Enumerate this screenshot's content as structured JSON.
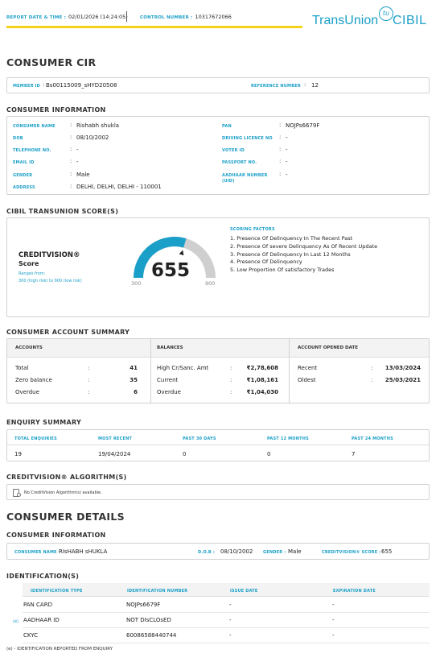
{
  "header": {
    "report_date_label": "REPORT DATE & TIME :",
    "report_date_value": "02/01/2026 (14:24:05)",
    "control_label": "CONTROL NUMBER :",
    "control_value": "10317672066",
    "logo_text_1": "TransUnion",
    "logo_text_2": "CIBIL",
    "logo_mark": "tu"
  },
  "title": "CONSUMER CIR",
  "member": {
    "member_id_label": "MEMBER ID",
    "member_id_value": "Bs00115009_sHYD20508",
    "reference_label": "REFERENCE NUMBER",
    "reference_value": "12"
  },
  "consumer_info": {
    "heading": "CONSUMER INFORMATION",
    "left": [
      {
        "label": "CONSUMER NAME",
        "value": "Rishabh shukla"
      },
      {
        "label": "DOB",
        "value": "08/10/2002"
      },
      {
        "label": "TELEPHONE NO.",
        "value": "-"
      },
      {
        "label": "EMAIL ID",
        "value": "-"
      },
      {
        "label": "GENDER",
        "value": "Male"
      },
      {
        "label": "ADDRESS",
        "value": "DELHI, DELHI, DELHI - 110001"
      }
    ],
    "right": [
      {
        "label": "PAN",
        "value": "NOJPs6679F"
      },
      {
        "label": "DRIVING LICENCE NO",
        "value": "-"
      },
      {
        "label": "VOTER ID",
        "value": "-"
      },
      {
        "label": "PASSPORT NO.",
        "value": "-"
      },
      {
        "label": "AADHAAR NUMBER",
        "label2": "(UID)",
        "value": "-"
      }
    ]
  },
  "score": {
    "heading": "CIBIL TRANSUNION SCORE(S)",
    "brand": "CREDITVISION®",
    "brand_sub": "Score",
    "ranges_label": "Ranges from:",
    "ranges_value": "300 (high risk) to 900 (low risk)",
    "value": 655,
    "min": 300,
    "max": 900,
    "min_label": "300",
    "max_label": "900",
    "color_fill": "#1a9fc8",
    "color_rest": "#cfcfcf",
    "factors_heading": "SCORING FACTORS",
    "factors": [
      "1. Presence Of Delinquency In The Recent Past",
      "2. Presence Of severe Delinquency As Of Recent Update",
      "3. Presence Of Delinquency In Last 12 Months",
      "4. Presence Of Delinquency",
      "5. Low Proportion Of satisfactory Trades"
    ]
  },
  "account_summary": {
    "heading": "CONSUMER ACCOUNT SUMMARY",
    "accounts": {
      "title": "ACCOUNTS",
      "rows": [
        {
          "label": "Total",
          "value": "41"
        },
        {
          "label": "Zero balance",
          "value": "35"
        },
        {
          "label": "Overdue",
          "value": "6"
        }
      ]
    },
    "balances": {
      "title": "BALANCES",
      "rows": [
        {
          "label": "High Cr/Sanc. Amt",
          "value": "₹2,78,608"
        },
        {
          "label": "Current",
          "value": "₹1,08,161"
        },
        {
          "label": "Overdue",
          "value": "₹1,04,030"
        }
      ]
    },
    "opened": {
      "title": "ACCOUNT OPENED DATE",
      "rows": [
        {
          "label": "Recent",
          "value": "13/03/2024"
        },
        {
          "label": "Oldest",
          "value": "25/03/2021"
        }
      ]
    }
  },
  "enquiry": {
    "heading": "ENQUIRY SUMMARY",
    "columns": [
      "TOTAL ENQUIRIES",
      "MOST RECENT",
      "PAST 30 DAYS",
      "PAST 12 MONTHS",
      "PAST 24 MONTHS"
    ],
    "values": [
      "19",
      "19/04/2024",
      "0",
      "0",
      "7"
    ]
  },
  "algorithm": {
    "heading": "CREDITVISION® ALGORITHM(S)",
    "message": "No CreditVision Algorithm(s) available."
  },
  "details": {
    "heading": "CONSUMER DETAILS",
    "info_heading": "CONSUMER INFORMATION",
    "name_label": "CONSUMER NAME :",
    "name_value": "RIsHABH sHUKLA",
    "dob_label": "D.O.B :",
    "dob_value": "08/10/2002",
    "gender_label": "GENDER :",
    "gender_value": "Male",
    "score_label": "CREDITVISION® SCORE :",
    "score_value": "655"
  },
  "identification": {
    "heading": "IDENTIFICATION(S)",
    "columns": [
      "IDENTIFICATION TYPE",
      "IDENTIFICATION NUMBER",
      "ISSUE DATE",
      "EXPIRATION DATE"
    ],
    "rows": [
      {
        "marker": "",
        "type": "PAN CARD",
        "number": "NOJPs6679F",
        "issue": "-",
        "expiry": "-"
      },
      {
        "marker": "(e)",
        "type": "AADHAAR ID",
        "number": "NOT DIsCLOsED",
        "issue": "-",
        "expiry": "-"
      },
      {
        "marker": "",
        "type": "CKYC",
        "number": "60086588440744",
        "issue": "-",
        "expiry": "-"
      }
    ],
    "footnote": "(e) - IDENTIFICATION REPORTED FROM ENQUIRY"
  }
}
